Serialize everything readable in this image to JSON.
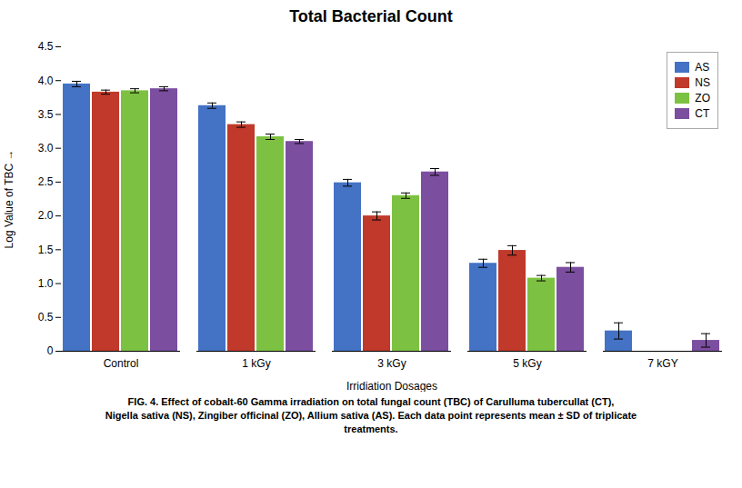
{
  "chart_data": {
    "type": "bar",
    "title": "Total Bacterial Count",
    "xlabel": "Irridiation Dosages",
    "ylabel": "Log Value of TBC",
    "categories": [
      "Control",
      "1 kGy",
      "3 kGy",
      "5 kGy",
      "7 kGY"
    ],
    "series": [
      {
        "name": "AS",
        "color": "#4472C4",
        "values": [
          3.95,
          3.63,
          2.49,
          1.3,
          0.3
        ],
        "errors": [
          0.04,
          0.04,
          0.05,
          0.06,
          0.12
        ]
      },
      {
        "name": "NS",
        "color": "#C0392B",
        "values": [
          3.83,
          3.35,
          2.0,
          1.49,
          0.0
        ],
        "errors": [
          0.03,
          0.04,
          0.06,
          0.07,
          0.0
        ]
      },
      {
        "name": "ZO",
        "color": "#7DC142",
        "values": [
          3.85,
          3.17,
          2.3,
          1.08,
          0.0
        ],
        "errors": [
          0.03,
          0.04,
          0.04,
          0.04,
          0.0
        ]
      },
      {
        "name": "CT",
        "color": "#7B4EA0",
        "values": [
          3.88,
          3.1,
          2.65,
          1.24,
          0.16
        ],
        "errors": [
          0.03,
          0.03,
          0.05,
          0.07,
          0.1
        ]
      }
    ],
    "ylim": [
      0,
      4.5
    ],
    "yticks": [
      0,
      0.5,
      {
        "value": 1.0,
        "label": "1.0"
      },
      1.5,
      {
        "value": 2.0,
        "label": "2.0"
      },
      2.5,
      {
        "value": 3.0,
        "label": "3.0"
      },
      3.5,
      {
        "value": 4.0,
        "label": "4.0"
      },
      4.5
    ],
    "grid": false,
    "legend": "upper right",
    "caption": [
      "FIG. 4. Effect of cobalt-60 Gamma irradiation on total fungal count (TBC) of Carulluma tubercullat (CT),",
      "Nigella sativa (NS), Zingiber officinal (ZO), Allium sativa (AS). Each data point represents mean ± SD of triplicate",
      "treatments."
    ]
  }
}
